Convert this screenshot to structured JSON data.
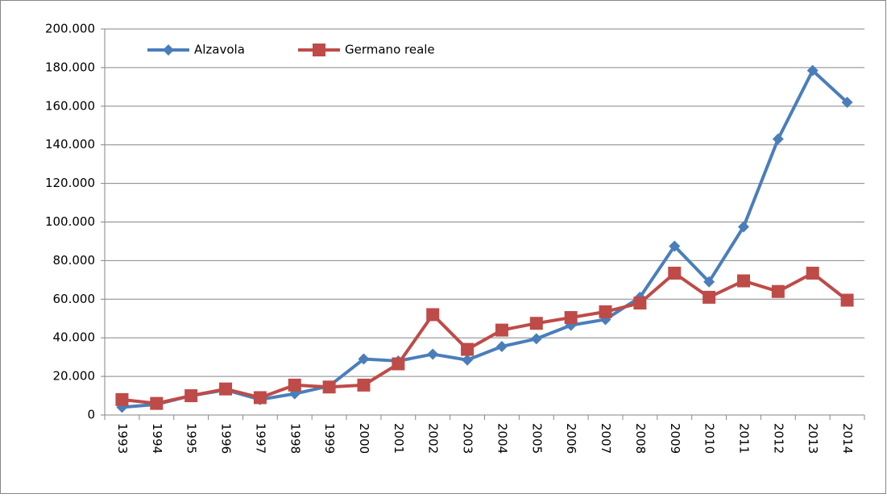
{
  "chart_data": {
    "type": "line",
    "categories": [
      "1993",
      "1994",
      "1995",
      "1996",
      "1997",
      "1998",
      "1999",
      "2000",
      "2001",
      "2002",
      "2003",
      "2004",
      "2005",
      "2006",
      "2007",
      "2008",
      "2009",
      "2010",
      "2011",
      "2012",
      "2013",
      "2014"
    ],
    "series": [
      {
        "name": "Alzavola",
        "color": "#4a7ebb",
        "marker": "diamond",
        "values": [
          4000,
          5500,
          10000,
          13000,
          8000,
          11000,
          15000,
          29000,
          28000,
          31500,
          28500,
          35500,
          39500,
          46500,
          49500,
          61000,
          87500,
          69000,
          97500,
          143000,
          178500,
          162000
        ]
      },
      {
        "name": "Germano reale",
        "color": "#be4b48",
        "marker": "square",
        "values": [
          8000,
          6000,
          10000,
          13500,
          9000,
          15500,
          14500,
          15500,
          26500,
          52000,
          34000,
          44000,
          47500,
          50500,
          53500,
          58000,
          73500,
          61000,
          69500,
          64000,
          73500,
          59500
        ]
      }
    ],
    "ylim": [
      0,
      200000
    ],
    "yticks": [
      0,
      {
        "value": 20000,
        "label": "20.000"
      },
      {
        "value": 40000,
        "label": "40.000"
      },
      {
        "value": 60000,
        "label": "60.000"
      },
      {
        "value": 80000,
        "label": "80.000"
      },
      {
        "value": 100000,
        "label": "100.000"
      },
      {
        "value": 120000,
        "label": "120.000"
      },
      {
        "value": 140000,
        "label": "140.000"
      },
      {
        "value": 160000,
        "label": "160.000"
      },
      {
        "value": 180000,
        "label": "180.000"
      },
      {
        "value": 200000,
        "label": "200.000"
      }
    ],
    "grid": true,
    "legend": "top-left"
  }
}
